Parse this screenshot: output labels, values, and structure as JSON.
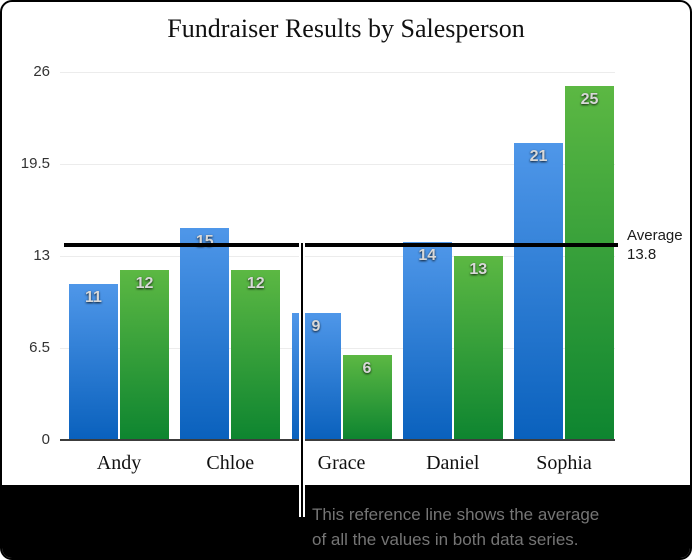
{
  "frame": {
    "background": "#ffffff",
    "border_color": "#000000",
    "caption_panel_background": "#000000"
  },
  "chart_data": {
    "type": "bar",
    "title": "Fundraiser Results by Salesperson",
    "categories": [
      "Andy",
      "Chloe",
      "Grace",
      "Daniel",
      "Sophia"
    ],
    "series": [
      {
        "name": "series-1-blue",
        "color_top": "#4f97e9",
        "color_bottom": "#0a61bd",
        "values": [
          11,
          15,
          9,
          14,
          21
        ]
      },
      {
        "name": "series-2-green",
        "color_top": "#5cb843",
        "color_bottom": "#0e8530",
        "values": [
          12,
          12,
          6,
          13,
          25
        ]
      }
    ],
    "y_ticks": [
      0,
      6.5,
      13,
      19.5,
      26
    ],
    "ylim": [
      0,
      26
    ],
    "grid": "horizontal-light",
    "legend": "none",
    "reference_line": {
      "value": 13.8,
      "label_title": "Average",
      "label_value": "13.8",
      "color": "#000000"
    }
  },
  "callout": {
    "line1": "This reference line shows the average",
    "line2": "of all the values in both data series.",
    "text_color": "#757575"
  }
}
